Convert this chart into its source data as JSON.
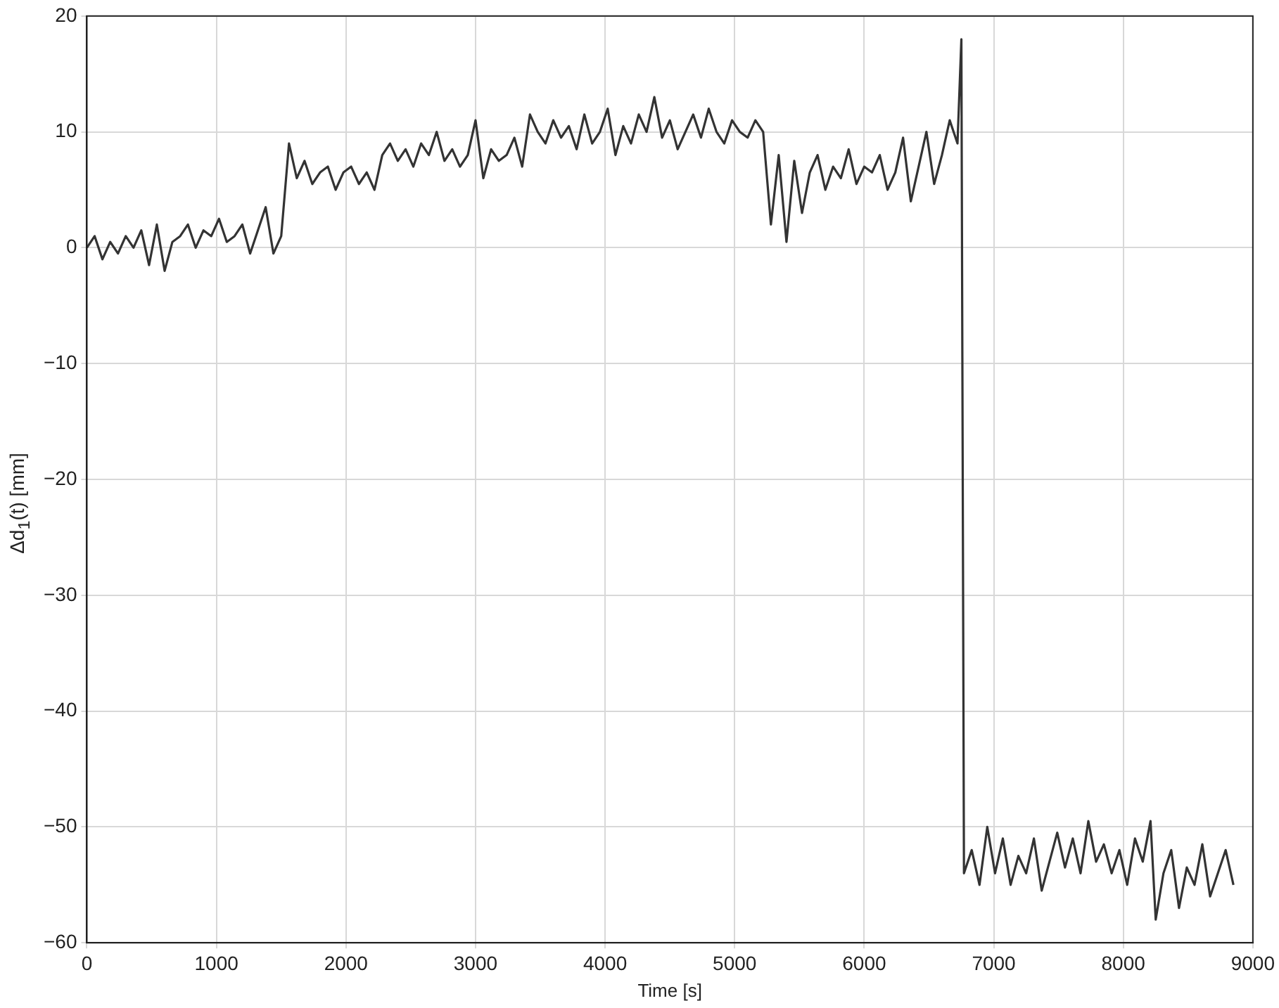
{
  "chart_data": {
    "type": "line",
    "xlabel": "Time [s]",
    "ylabel": "Δd$_{1}$(t) [mm]",
    "xlim": [
      0,
      9000
    ],
    "xticks": [
      0,
      1000,
      2000,
      3000,
      4000,
      5000,
      6000,
      7000,
      8000,
      9000
    ],
    "ylim": [
      -60,
      20
    ],
    "yticks": [
      -60,
      -50,
      -40,
      -30,
      -20,
      -10,
      0,
      10,
      20
    ],
    "grid": true,
    "line_style": "solid",
    "x": [
      0,
      60,
      120,
      180,
      240,
      300,
      360,
      420,
      480,
      540,
      600,
      660,
      720,
      780,
      840,
      900,
      960,
      1020,
      1080,
      1140,
      1200,
      1260,
      1320,
      1380,
      1440,
      1500,
      1560,
      1620,
      1680,
      1740,
      1800,
      1860,
      1920,
      1980,
      2040,
      2100,
      2160,
      2220,
      2280,
      2340,
      2400,
      2460,
      2520,
      2580,
      2640,
      2700,
      2760,
      2820,
      2880,
      2940,
      3000,
      3060,
      3120,
      3180,
      3240,
      3300,
      3360,
      3420,
      3480,
      3540,
      3600,
      3660,
      3720,
      3780,
      3840,
      3900,
      3960,
      4020,
      4080,
      4140,
      4200,
      4260,
      4320,
      4380,
      4440,
      4500,
      4560,
      4620,
      4680,
      4740,
      4800,
      4860,
      4920,
      4980,
      5040,
      5100,
      5160,
      5220,
      5280,
      5340,
      5400,
      5460,
      5520,
      5580,
      5640,
      5700,
      5760,
      5820,
      5880,
      5940,
      6000,
      6060,
      6120,
      6180,
      6240,
      6300,
      6360,
      6420,
      6480,
      6540,
      6600,
      6660,
      6720,
      6750,
      6770,
      6830,
      6890,
      6950,
      7010,
      7070,
      7130,
      7190,
      7250,
      7310,
      7370,
      7430,
      7490,
      7550,
      7610,
      7670,
      7730,
      7790,
      7850,
      7910,
      7970,
      8030,
      8090,
      8150,
      8210,
      8250,
      8310,
      8370,
      8430,
      8490,
      8550,
      8610,
      8670,
      8730,
      8790,
      8850
    ],
    "series": [
      {
        "color": "#333333",
        "values": [
          0,
          1,
          -1,
          0.5,
          -0.5,
          1,
          0,
          1.5,
          -1.5,
          2,
          -2,
          0.5,
          1,
          2,
          0,
          1.5,
          1,
          2.5,
          0.5,
          1,
          2,
          -0.5,
          1.5,
          3.5,
          -0.5,
          1,
          9,
          6,
          7.5,
          5.5,
          6.5,
          7,
          5,
          6.5,
          7,
          5.5,
          6.5,
          5,
          8,
          9,
          7.5,
          8.5,
          7,
          9,
          8,
          10,
          7.5,
          8.5,
          7,
          8,
          11,
          6,
          8.5,
          7.5,
          8,
          9.5,
          7,
          11.5,
          10,
          9,
          11,
          9.5,
          10.5,
          8.5,
          11.5,
          9,
          10,
          12,
          8,
          10.5,
          9,
          11.5,
          10,
          13,
          9.5,
          11,
          8.5,
          10,
          11.5,
          9.5,
          12,
          10,
          9,
          11,
          10,
          9.5,
          11,
          10,
          2,
          8,
          0.5,
          7.5,
          3,
          6.5,
          8,
          5,
          7,
          6,
          8.5,
          5.5,
          7,
          6.5,
          8,
          5,
          6.5,
          9.5,
          4,
          7,
          10,
          5.5,
          8,
          11,
          9,
          18,
          -54,
          -52,
          -55,
          -50,
          -54,
          -51,
          -55,
          -52.5,
          -54,
          -51,
          -55.5,
          -53,
          -50.5,
          -53.5,
          -51,
          -54,
          -49.5,
          -53,
          -51.5,
          -54,
          -52,
          -55,
          -51,
          -53,
          -49.5,
          -58,
          -54,
          -52,
          -57,
          -53.5,
          -55,
          -51.5,
          -56,
          -54,
          -52,
          -55
        ]
      }
    ]
  }
}
